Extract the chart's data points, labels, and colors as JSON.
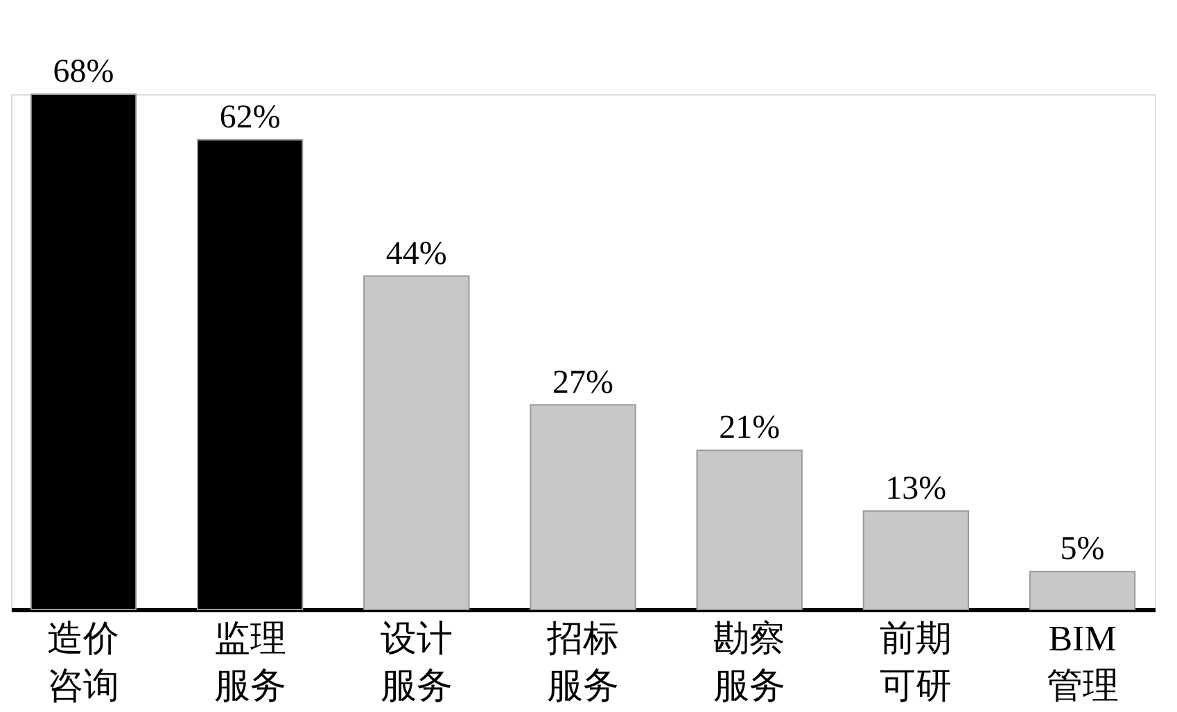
{
  "chart_data": {
    "type": "bar",
    "categories": [
      "造价咨询",
      "监理服务",
      "设计服务",
      "招标服务",
      "勘察服务",
      "前期可研",
      "BIM管理"
    ],
    "values": [
      68,
      62,
      44,
      27,
      21,
      13,
      5
    ],
    "colors": [
      "#000000",
      "#000000",
      "#c8c8c8",
      "#c8c8c8",
      "#c8c8c8",
      "#c8c8c8",
      "#c8c8c8"
    ],
    "value_labels": [
      "68%",
      "62%",
      "44%",
      "27%",
      "21%",
      "13%",
      "5%"
    ]
  }
}
